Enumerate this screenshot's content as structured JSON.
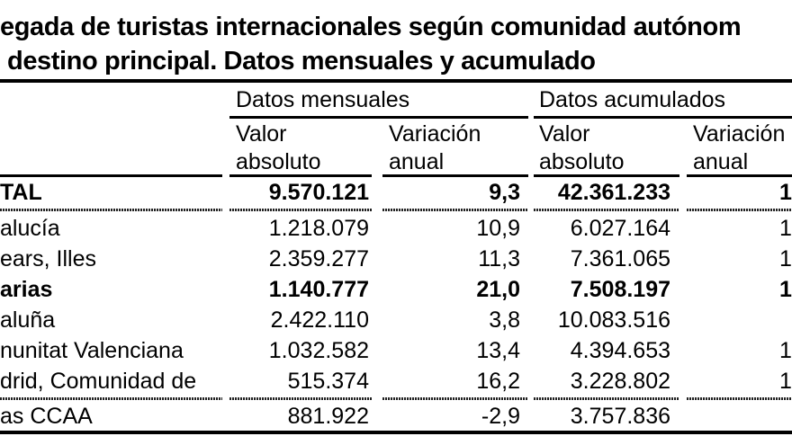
{
  "page": {
    "background": "#ffffff",
    "text_color": "#000000"
  },
  "title": {
    "line1": "egada de turistas internacionales según comunidad autónom",
    "line2": "destino principal. Datos mensuales y acumulado"
  },
  "table": {
    "group_headers": {
      "monthly": "Datos mensuales",
      "accumulated": "Datos acumulados"
    },
    "column_headers": {
      "value_line1": "Valor",
      "value_line2": "absoluto",
      "variation_line1": "Variación",
      "variation_line2": "anual"
    },
    "rows": [
      {
        "label": "TAL",
        "monthly_value": "9.570.121",
        "monthly_variation": "9,3",
        "accumulated_value": "42.361.233",
        "accumulated_variation": "1"
      },
      {
        "label": "alucía",
        "monthly_value": "1.218.079",
        "monthly_variation": "10,9",
        "accumulated_value": "6.027.164",
        "accumulated_variation": "1"
      },
      {
        "label": "ears, Illes",
        "monthly_value": "2.359.277",
        "monthly_variation": "11,3",
        "accumulated_value": "7.361.065",
        "accumulated_variation": "1"
      },
      {
        "label": "arias",
        "monthly_value": "1.140.777",
        "monthly_variation": "21,0",
        "accumulated_value": "7.508.197",
        "accumulated_variation": "1"
      },
      {
        "label": "aluña",
        "monthly_value": "2.422.110",
        "monthly_variation": "3,8",
        "accumulated_value": "10.083.516",
        "accumulated_variation": ""
      },
      {
        "label": "nunitat Valenciana",
        "monthly_value": "1.032.582",
        "monthly_variation": "13,4",
        "accumulated_value": "4.394.653",
        "accumulated_variation": "1"
      },
      {
        "label": "drid, Comunidad de",
        "monthly_value": "515.374",
        "monthly_variation": "16,2",
        "accumulated_value": "3.228.802",
        "accumulated_variation": "1"
      },
      {
        "label": "as CCAA",
        "monthly_value": "881.922",
        "monthly_variation": "-2,9",
        "accumulated_value": "3.757.836",
        "accumulated_variation": ""
      }
    ]
  }
}
